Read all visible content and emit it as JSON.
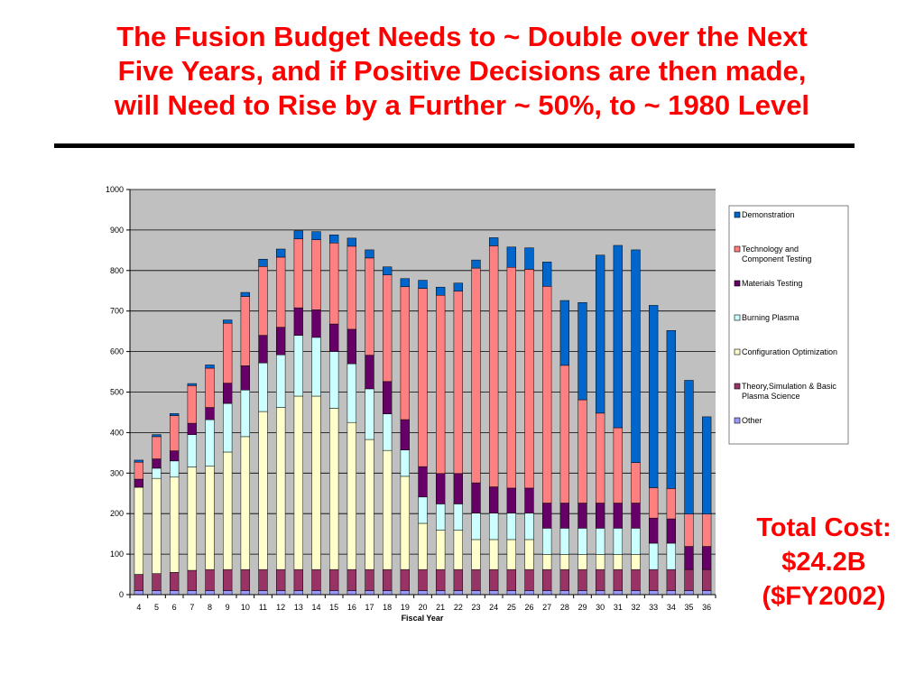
{
  "slide": {
    "title_lines": [
      "The Fusion Budget Needs to ~ Double over the Next",
      "Five Years, and if Positive Decisions are then made,",
      "will Need to Rise by a Further ~ 50%, to ~ 1980 Level"
    ],
    "total_cost_lines": [
      "Total Cost:",
      "$24.2B",
      "($FY2002)"
    ]
  },
  "colors": {
    "title": "#ff0000",
    "plot_background": "#c0c0c0",
    "gridline": "#000000"
  },
  "chart_data": {
    "type": "bar",
    "stacked": true,
    "title": "",
    "xlabel": "Fiscal Year",
    "ylabel": "",
    "ylim": [
      0,
      1000
    ],
    "yticks": [
      0,
      100,
      200,
      300,
      400,
      500,
      600,
      700,
      800,
      900,
      1000
    ],
    "grid": true,
    "legend_position": "right",
    "categories": [
      "4",
      "5",
      "6",
      "7",
      "8",
      "9",
      "10",
      "11",
      "12",
      "13",
      "14",
      "15",
      "16",
      "17",
      "18",
      "19",
      "20",
      "21",
      "22",
      "23",
      "24",
      "25",
      "26",
      "27",
      "28",
      "29",
      "30",
      "31",
      "32",
      "33",
      "34",
      "35",
      "36"
    ],
    "series": [
      {
        "name": "Other",
        "color": "#9999ff",
        "values": [
          10,
          10,
          10,
          10,
          10,
          10,
          10,
          10,
          10,
          10,
          10,
          10,
          10,
          10,
          10,
          10,
          10,
          10,
          10,
          10,
          10,
          10,
          10,
          10,
          10,
          10,
          10,
          10,
          10,
          10,
          10,
          10,
          10
        ]
      },
      {
        "name": "Theory,Simulation & Basic Plasma Science",
        "color": "#993366",
        "values": [
          40,
          42,
          45,
          50,
          52,
          52,
          52,
          52,
          52,
          52,
          52,
          52,
          52,
          52,
          52,
          52,
          52,
          52,
          52,
          52,
          52,
          52,
          52,
          52,
          52,
          52,
          52,
          52,
          52,
          52,
          52,
          52,
          52
        ]
      },
      {
        "name": "Configuration Optimization",
        "color": "#ffffcc",
        "values": [
          215,
          235,
          235,
          255,
          255,
          290,
          328,
          390,
          400,
          428,
          428,
          398,
          363,
          321,
          294,
          230,
          114,
          97,
          97,
          74,
          74,
          74,
          74,
          37,
          37,
          37,
          37,
          37,
          37,
          0,
          0,
          0,
          0
        ]
      },
      {
        "name": "Burning Plasma",
        "color": "#ccffff",
        "values": [
          0,
          25,
          40,
          80,
          115,
          120,
          115,
          120,
          130,
          150,
          145,
          140,
          145,
          125,
          90,
          65,
          65,
          65,
          65,
          65,
          65,
          65,
          65,
          65,
          65,
          65,
          65,
          65,
          65,
          65,
          65,
          0,
          0
        ]
      },
      {
        "name": "Materials Testing",
        "color": "#660066",
        "values": [
          20,
          23,
          25,
          28,
          30,
          50,
          60,
          68,
          68,
          68,
          68,
          68,
          85,
          83,
          80,
          75,
          75,
          75,
          75,
          75,
          65,
          62,
          62,
          62,
          62,
          62,
          62,
          62,
          62,
          62,
          60,
          57,
          57
        ]
      },
      {
        "name": "Technology and Component Testing",
        "color": "#ff8080",
        "values": [
          42,
          55,
          87,
          93,
          97,
          148,
          171,
          170,
          173,
          170,
          173,
          200,
          205,
          240,
          263,
          328,
          440,
          440,
          450,
          530,
          595,
          545,
          540,
          535,
          340,
          255,
          222,
          186,
          100,
          75,
          75,
          80,
          80
        ]
      },
      {
        "name": "Demonstration",
        "color": "#0066cc",
        "values": [
          5,
          5,
          5,
          5,
          8,
          8,
          10,
          18,
          20,
          20,
          20,
          20,
          20,
          20,
          20,
          20,
          20,
          20,
          20,
          20,
          20,
          50,
          53,
          60,
          160,
          240,
          390,
          450,
          525,
          450,
          390,
          330,
          240
        ]
      }
    ]
  }
}
